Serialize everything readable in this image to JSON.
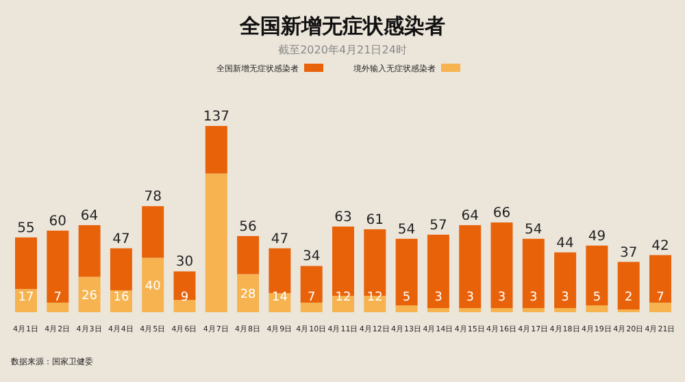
{
  "chart_data": {
    "type": "bar",
    "title": "全国新增无症状感染者",
    "subtitle": "截至2020年4月21日24时",
    "categories": [
      "4月1日",
      "4月2日",
      "4月3日",
      "4月4日",
      "4月5日",
      "4月6日",
      "4月7日",
      "4月8日",
      "4月9日",
      "4月10日",
      "4月11日",
      "4月12日",
      "4月13日",
      "4月14日",
      "4月15日",
      "4月16日",
      "4月17日",
      "4月18日",
      "4月19日",
      "4月20日",
      "4月21日"
    ],
    "stacked": true,
    "legend": "top",
    "series": [
      {
        "name": "境外输入无症状感染者",
        "color": "#f6b350",
        "values": [
          17,
          7,
          26,
          16,
          40,
          9,
          102,
          28,
          14,
          7,
          12,
          12,
          5,
          3,
          3,
          3,
          3,
          3,
          5,
          2,
          7
        ],
        "value_labels": [
          "17",
          "7",
          "26",
          "16",
          "40",
          "9",
          null,
          "28",
          "14",
          "7",
          "12",
          "12",
          "5",
          "3",
          "3",
          "3",
          "3",
          "3",
          "5",
          "2",
          "7"
        ]
      },
      {
        "name": "全国新增无症状感染者",
        "color": "#e8620a",
        "values": [
          38,
          53,
          38,
          31,
          38,
          21,
          35,
          28,
          33,
          27,
          51,
          49,
          49,
          54,
          61,
          63,
          51,
          41,
          44,
          35,
          35
        ]
      }
    ],
    "totals": [
      "55",
      "60",
      "64",
      "47",
      "78",
      "30",
      "137",
      "56",
      "47",
      "34",
      "63",
      "61",
      "54",
      "57",
      "64",
      "66",
      "54",
      "44",
      "49",
      "37",
      "42"
    ],
    "annotations": [
      "数据来源：国家卫健委"
    ]
  }
}
